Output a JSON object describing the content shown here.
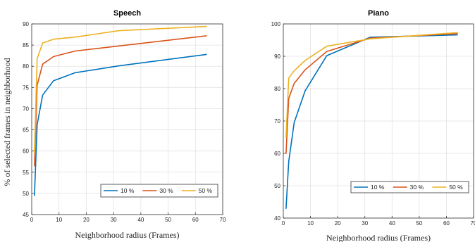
{
  "chart_data": [
    {
      "type": "line",
      "title": "Speech",
      "xlabel": "Neighborhood radius (Frames)",
      "ylabel": "% of selected frames in neighborhood",
      "xlim": [
        0,
        70
      ],
      "ylim": [
        45,
        90
      ],
      "xticks": [
        0,
        10,
        20,
        30,
        40,
        50,
        60,
        70
      ],
      "yticks": [
        45,
        50,
        55,
        60,
        65,
        70,
        75,
        80,
        85,
        90
      ],
      "grid": true,
      "legend": "bottom-right",
      "series": [
        {
          "name": "10 %",
          "color": "#0072bd",
          "x": [
            1,
            2,
            4,
            8,
            16,
            32,
            64
          ],
          "y": [
            49.5,
            66.2,
            73.2,
            76.6,
            78.5,
            80.1,
            82.8
          ]
        },
        {
          "name": "30 %",
          "color": "#d95319",
          "x": [
            1,
            2,
            4,
            8,
            16,
            32,
            64
          ],
          "y": [
            56.5,
            75.5,
            80.5,
            82.3,
            83.6,
            84.8,
            87.2
          ]
        },
        {
          "name": "50 %",
          "color": "#edb120",
          "x": [
            1,
            2,
            4,
            8,
            16,
            32,
            64
          ],
          "y": [
            59.5,
            81.8,
            85.5,
            86.4,
            86.9,
            88.4,
            89.4
          ]
        }
      ]
    },
    {
      "type": "line",
      "title": "Piano",
      "xlabel": "Neighborhood radius (Frames)",
      "ylabel": "",
      "xlim": [
        0,
        70
      ],
      "ylim": [
        40,
        100
      ],
      "xticks": [
        0,
        10,
        20,
        30,
        40,
        50,
        60,
        70
      ],
      "yticks": [
        40,
        50,
        60,
        70,
        80,
        90,
        100
      ],
      "grid": true,
      "legend": "bottom-right",
      "series": [
        {
          "name": "10 %",
          "color": "#0072bd",
          "x": [
            1,
            2,
            4,
            8,
            16,
            32,
            64
          ],
          "y": [
            43,
            57.5,
            69.5,
            79.3,
            90.2,
            95.9,
            96.6
          ]
        },
        {
          "name": "30 %",
          "color": "#d95319",
          "x": [
            1,
            2,
            4,
            8,
            16,
            32,
            64
          ],
          "y": [
            60,
            77,
            81.6,
            85.8,
            91.5,
            95.6,
            97.0
          ]
        },
        {
          "name": "50 %",
          "color": "#edb120",
          "x": [
            1,
            2,
            4,
            8,
            16,
            32,
            64
          ],
          "y": [
            65,
            83.3,
            85.5,
            88.7,
            93.1,
            95.4,
            97.3
          ]
        }
      ]
    }
  ]
}
